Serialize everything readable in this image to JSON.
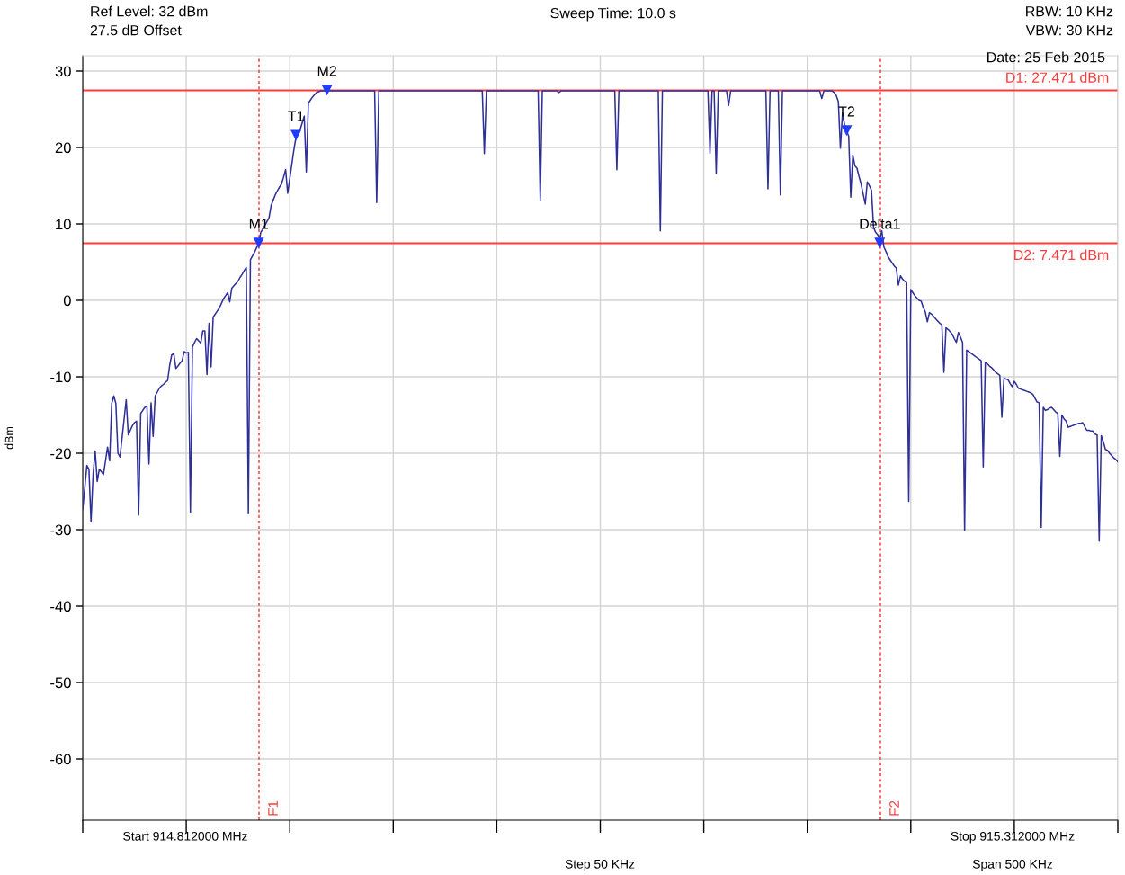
{
  "chart_data": {
    "type": "line",
    "title": "Sweep Time: 10.0 s",
    "ylabel": "dBm",
    "categories": [
      null,
      null,
      null,
      null,
      null,
      null,
      null,
      null,
      null,
      null,
      null,
      null,
      null,
      null,
      null,
      null,
      null,
      null,
      null,
      null,
      null,
      null,
      null,
      null,
      null,
      null,
      null,
      null,
      null,
      null,
      null,
      null,
      null,
      null,
      null,
      null,
      null,
      null,
      null,
      null,
      null,
      null,
      null,
      null,
      null,
      null,
      null,
      null,
      null,
      null,
      null,
      null,
      null,
      null,
      null,
      null,
      null,
      null,
      null,
      null,
      null,
      null,
      null,
      null,
      null,
      null,
      null,
      null,
      null,
      null,
      null,
      null,
      null,
      null,
      null,
      null,
      null,
      null,
      null,
      null,
      null,
      null,
      null,
      null,
      null,
      null,
      null,
      null,
      null,
      null,
      null,
      null,
      null,
      null,
      null,
      null,
      null,
      null,
      null,
      null,
      null,
      null,
      null,
      null,
      null,
      null,
      null,
      null,
      null,
      null,
      null,
      null,
      null,
      null,
      null,
      null,
      null,
      null,
      null,
      null,
      null,
      null,
      null,
      null,
      null,
      null,
      null,
      null,
      null,
      null,
      null,
      null,
      null,
      null,
      null,
      null,
      null,
      null,
      null,
      null,
      null,
      null,
      null,
      null,
      null,
      null,
      null,
      null,
      null,
      null,
      null,
      null,
      null,
      null,
      null,
      null,
      null,
      null,
      null,
      null,
      null,
      null,
      null,
      null,
      null,
      null,
      null,
      null,
      null,
      null,
      null,
      null,
      null,
      null,
      null,
      null,
      null,
      null,
      null,
      null,
      null,
      null,
      null,
      null,
      null,
      null,
      null,
      null,
      null,
      null,
      null,
      null,
      null,
      null,
      null,
      null,
      null,
      null,
      null,
      null,
      null,
      null,
      null,
      null,
      null,
      null,
      null,
      null,
      null,
      null,
      null,
      null,
      null,
      null,
      null,
      null,
      null,
      null,
      null,
      null,
      null,
      null,
      null,
      null,
      null,
      null,
      null,
      null,
      null,
      null,
      null,
      null,
      null,
      null,
      null,
      null,
      null,
      null,
      null,
      null,
      null,
      null,
      null,
      null,
      null,
      null,
      null,
      null,
      null,
      null,
      null,
      null,
      null,
      null,
      null,
      null,
      null,
      null,
      null,
      null,
      null,
      null,
      null,
      null,
      null,
      null,
      null,
      null,
      null,
      null,
      null,
      null,
      null,
      null,
      null,
      null,
      null,
      null,
      null,
      null,
      null,
      null,
      null,
      null,
      null,
      null,
      null,
      null,
      null,
      null,
      null,
      null,
      null,
      null,
      null,
      null,
      null,
      null,
      null,
      null,
      null,
      null,
      null,
      null,
      null,
      null,
      null,
      null,
      null,
      null,
      null,
      null,
      null,
      null,
      null,
      null,
      null,
      null,
      null,
      null,
      null,
      null,
      null,
      null,
      null,
      null,
      null,
      null,
      null,
      null,
      null,
      null,
      null,
      null,
      null,
      null,
      null,
      null,
      null,
      null,
      null,
      null,
      null,
      null,
      null,
      null,
      null,
      null,
      null,
      null,
      null,
      null,
      null,
      null,
      null,
      null,
      null,
      null,
      null,
      null,
      null,
      null,
      null,
      null,
      null,
      null,
      null,
      null,
      null,
      null,
      null,
      null,
      null,
      null,
      null,
      null,
      null,
      null,
      null,
      null,
      null,
      null,
      null,
      null,
      null,
      null,
      null,
      null,
      null,
      null,
      null,
      null,
      null,
      null,
      null,
      null,
      null,
      null,
      null,
      null,
      null,
      null,
      null,
      null,
      null,
      null,
      null,
      null,
      null,
      null,
      null,
      null,
      null,
      null,
      null,
      null,
      null,
      null,
      null,
      null,
      null,
      null,
      null,
      null,
      null,
      null,
      null,
      null,
      null,
      null,
      null,
      null,
      null,
      null,
      null,
      null,
      null,
      null,
      null,
      null,
      null,
      null,
      null,
      null,
      null,
      null,
      null,
      null,
      null,
      null,
      null,
      null,
      null,
      null,
      null,
      null,
      null,
      null,
      null,
      null,
      null,
      null,
      null,
      null,
      null,
      null,
      null,
      null,
      null,
      null,
      null,
      null,
      null,
      null,
      null,
      null,
      null,
      null,
      null,
      null,
      null,
      null,
      null,
      null,
      null,
      null,
      null,
      null,
      null,
      null,
      null,
      null,
      null,
      null,
      null,
      null,
      null,
      null,
      null,
      null,
      null
    ],
    "ylim": [
      -68,
      32
    ],
    "yticks": [
      -60,
      -50,
      -40,
      -30,
      -20,
      -10,
      0,
      10,
      20,
      30
    ],
    "tick_labels": "y",
    "grid": true,
    "series": [
      {
        "color": "#2f2f98",
        "values": [
          -27.3,
          -24.5,
          -21.6,
          -22.1,
          -29.0,
          -22.8,
          -19.7,
          -23.7,
          -22.1,
          -22.4,
          -22.8,
          -21.0,
          -19.2,
          -21.0,
          -13.5,
          -12.5,
          -13.5,
          -20.0,
          -20.5,
          -18.0,
          -15.5,
          -13.0,
          -17.6,
          -17.0,
          -16.4,
          -16.0,
          -15.8,
          -28.1,
          -14.8,
          -14.4,
          -14.0,
          -13.8,
          -21.4,
          -13.4,
          -17.8,
          -12.5,
          -12.0,
          -11.5,
          -11.2,
          -11.0,
          -10.7,
          -10.5,
          -8.5,
          -7.1,
          -7.0,
          -8.9,
          -8.6,
          -8.2,
          -7.9,
          -6.7,
          -6.9,
          -6.8,
          -27.7,
          -6.1,
          -5.5,
          -5.0,
          -5.3,
          -5.6,
          -4.0,
          -4.0,
          -9.7,
          -3.0,
          -8.7,
          -2.2,
          -1.8,
          -1.4,
          -1.0,
          -0.4,
          0.2,
          0.6,
          1.0,
          -0.2,
          1.6,
          1.9,
          2.2,
          2.5,
          3.0,
          3.4,
          3.9,
          4.3,
          -27.9,
          5.3,
          5.8,
          6.3,
          6.9,
          7.5,
          8.9,
          9.3,
          9.8,
          10.3,
          10.8,
          12.4,
          13.1,
          13.8,
          14.3,
          14.8,
          15.2,
          16.1,
          17.1,
          14.0,
          15.9,
          17.8,
          19.7,
          21.3,
          21.8,
          22.3,
          23.2,
          24.1,
          16.8,
          25.8,
          26.2,
          26.6,
          26.9,
          27.2,
          27.3,
          27.4,
          27.4,
          27.4,
          27.4,
          27.4,
          27.4,
          27.4,
          27.4,
          27.4,
          27.4,
          27.4,
          27.4,
          27.4,
          27.4,
          27.4,
          27.4,
          27.4,
          27.4,
          27.4,
          27.4,
          27.4,
          27.4,
          27.4,
          27.4,
          27.4,
          27.4,
          27.4,
          12.8,
          27.4,
          27.4,
          27.4,
          27.4,
          27.4,
          27.4,
          27.4,
          27.4,
          27.4,
          27.4,
          27.4,
          27.4,
          27.4,
          27.4,
          27.4,
          27.4,
          27.4,
          27.4,
          27.4,
          27.4,
          27.4,
          27.4,
          27.4,
          27.4,
          27.4,
          27.4,
          27.4,
          27.4,
          27.4,
          27.4,
          27.4,
          27.4,
          27.4,
          27.4,
          27.4,
          27.4,
          27.4,
          27.4,
          27.4,
          27.4,
          27.4,
          27.4,
          27.4,
          27.4,
          27.4,
          27.4,
          27.4,
          27.4,
          27.4,
          27.4,
          27.4,
          19.2,
          27.4,
          27.4,
          27.4,
          27.4,
          27.4,
          27.4,
          27.4,
          27.4,
          27.4,
          27.4,
          27.4,
          27.4,
          27.4,
          27.4,
          27.4,
          27.4,
          27.4,
          27.4,
          27.4,
          27.4,
          27.4,
          27.4,
          27.4,
          27.4,
          27.4,
          27.4,
          13.1,
          27.4,
          27.4,
          27.4,
          27.4,
          27.4,
          27.4,
          27.4,
          27.4,
          27.2,
          27.4,
          27.4,
          27.4,
          27.4,
          27.4,
          27.4,
          27.4,
          27.4,
          27.4,
          27.4,
          27.4,
          27.4,
          27.4,
          27.4,
          27.4,
          27.4,
          27.4,
          27.4,
          27.4,
          27.4,
          27.4,
          27.4,
          27.4,
          27.4,
          27.4,
          27.4,
          27.4,
          17.1,
          27.4,
          27.4,
          27.4,
          27.4,
          27.4,
          27.4,
          27.4,
          27.4,
          27.4,
          27.4,
          27.4,
          27.4,
          27.4,
          27.4,
          27.4,
          27.4,
          27.4,
          27.4,
          27.4,
          27.4,
          9.1,
          27.4,
          27.4,
          27.4,
          27.4,
          27.4,
          27.4,
          27.4,
          27.4,
          27.4,
          27.4,
          27.4,
          27.4,
          27.4,
          27.4,
          27.4,
          27.4,
          27.4,
          27.4,
          27.4,
          27.4,
          27.4,
          27.4,
          27.4,
          19.2,
          27.4,
          27.4,
          16.6,
          27.4,
          27.4,
          27.4,
          27.4,
          27.4,
          25.5,
          27.4,
          27.4,
          27.4,
          27.4,
          27.4,
          27.4,
          27.4,
          27.4,
          27.4,
          27.4,
          27.4,
          27.4,
          27.4,
          27.4,
          27.4,
          27.4,
          27.4,
          27.4,
          14.6,
          27.4,
          27.4,
          27.4,
          27.4,
          27.4,
          13.8,
          27.4,
          27.4,
          27.4,
          27.4,
          27.4,
          27.4,
          27.4,
          27.4,
          27.4,
          27.4,
          27.4,
          27.4,
          27.4,
          27.4,
          27.4,
          27.4,
          27.4,
          27.4,
          27.4,
          26.4,
          27.4,
          27.4,
          27.4,
          27.4,
          27.4,
          27.2,
          26.8,
          26.0,
          19.9,
          24.5,
          23.0,
          22.1,
          21.5,
          13.5,
          19.0,
          17.6,
          17.3,
          16.2,
          15.2,
          13.9,
          12.6,
          15.5,
          15.0,
          14.4,
          9.6,
          8.9,
          8.6,
          8.0,
          9.1,
          7.0,
          6.4,
          5.7,
          5.3,
          4.9,
          4.5,
          4.2,
          2.0,
          3.2,
          2.8,
          2.5,
          2.3,
          -26.3,
          1.4,
          1.0,
          0.6,
          0.3,
          0.0,
          -0.1,
          -0.9,
          -1.5,
          -2.8,
          -1.6,
          -1.8,
          -2.1,
          -2.4,
          -2.7,
          -3.0,
          -3.2,
          -9.4,
          -3.6,
          -3.8,
          -4.1,
          -4.4,
          -5.0,
          -5.5,
          -4.2,
          -4.8,
          -5.5,
          -30.1,
          -6.5,
          -6.7,
          -6.9,
          -7.1,
          -7.3,
          -7.5,
          -7.7,
          -7.9,
          -21.8,
          -8.1,
          -8.3,
          -8.6,
          -8.8,
          -9.1,
          -9.4,
          -9.6,
          -9.8,
          -15.3,
          -10.2,
          -10.3,
          -10.4,
          -10.9,
          -11.3,
          -10.6,
          -11.0,
          -11.5,
          -11.6,
          -11.7,
          -11.8,
          -11.9,
          -12.0,
          -12.1,
          -12.3,
          -12.8,
          -13.3,
          -13.4,
          -29.7,
          -14.0,
          -14.4,
          -14.3,
          -14.1,
          -14.0,
          -14.3,
          -14.6,
          -14.8,
          -20.4,
          -15.0,
          -15.5,
          -15.8,
          -16.6,
          -16.5,
          -16.4,
          -16.3,
          -16.2,
          -16.1,
          -16.1,
          -16.0,
          -16.5,
          -17.0,
          -17.0,
          -17.1,
          -17.1,
          -17.5,
          -17.6,
          -31.5,
          -17.7,
          -18.5,
          -19.5,
          -19.6,
          -20.0,
          -20.3,
          -20.6,
          -20.8,
          -21.1
        ]
      },
      {
        "type": "scatter",
        "color": "#1f3dff",
        "marker": "triangle",
        "values": [
          null,
          null,
          null,
          null,
          null,
          null,
          null,
          null,
          null,
          null,
          null,
          null,
          null,
          null,
          null,
          null,
          null,
          null,
          null,
          null,
          null,
          null,
          null,
          null,
          null,
          null,
          null,
          null,
          null,
          null,
          null,
          null,
          null,
          null,
          null,
          null,
          null,
          null,
          null,
          null,
          null,
          null,
          null,
          null,
          null,
          null,
          null,
          null,
          null,
          null,
          null,
          null,
          null,
          null,
          null,
          null,
          null,
          null,
          null,
          null,
          null,
          null,
          null,
          null,
          null,
          null,
          null,
          null,
          null,
          null,
          null,
          null,
          null,
          null,
          null,
          null,
          null,
          null,
          null,
          null,
          null,
          null,
          null,
          null,
          null,
          7.5,
          null,
          null,
          null,
          null,
          null,
          null,
          null,
          null,
          null,
          null,
          null,
          null,
          null,
          null,
          null,
          null,
          null,
          21.6,
          null,
          null,
          null,
          null,
          null,
          null,
          null,
          null,
          null,
          null,
          null,
          null,
          null,
          null,
          27.5,
          null,
          null,
          null,
          null,
          null,
          null,
          null,
          null,
          null,
          null,
          null,
          null,
          null,
          null,
          null,
          null,
          null,
          null,
          null,
          null,
          null,
          null,
          null,
          null,
          null,
          null,
          null,
          null,
          null,
          null,
          null,
          null,
          null,
          null,
          null,
          null,
          null,
          null,
          null,
          null,
          null,
          null,
          null,
          null,
          null,
          null,
          null,
          null,
          null,
          null,
          null,
          null,
          null,
          null,
          null,
          null,
          null,
          null,
          null,
          null,
          null,
          null,
          null,
          null,
          null,
          null,
          null,
          null,
          null,
          null,
          null,
          null,
          null,
          null,
          null,
          null,
          null,
          null,
          null,
          null,
          null,
          null,
          null,
          null,
          null,
          null,
          null,
          null,
          null,
          null,
          null,
          null,
          null,
          null,
          null,
          null,
          null,
          null,
          null,
          null,
          null,
          null,
          null,
          null,
          null,
          null,
          null,
          null,
          null,
          null,
          null,
          null,
          null,
          null,
          null,
          null,
          null,
          null,
          null,
          null,
          null,
          null,
          null,
          null,
          null,
          null,
          null,
          null,
          null,
          null,
          null,
          null,
          null,
          null,
          null,
          null,
          null,
          null,
          null,
          null,
          null,
          null,
          null,
          null,
          null,
          null,
          null,
          null,
          null,
          null,
          null,
          null,
          null,
          null,
          null,
          null,
          null,
          null,
          null,
          null,
          null,
          null,
          null,
          null,
          null,
          null,
          null,
          null,
          null,
          null,
          null,
          null,
          null,
          null,
          null,
          null,
          null,
          null,
          null,
          null,
          null,
          null,
          null,
          null,
          null,
          null,
          null,
          null,
          null,
          null,
          null,
          null,
          null,
          null,
          null,
          null,
          null,
          null,
          null,
          null,
          null,
          null,
          null,
          null,
          null,
          null,
          null,
          null,
          null,
          null,
          null,
          null,
          null,
          null,
          null,
          null,
          null,
          null,
          null,
          null,
          null,
          null,
          null,
          null,
          null,
          null,
          null,
          null,
          null,
          null,
          null,
          null,
          null,
          null,
          null,
          null,
          null,
          null,
          null,
          null,
          null,
          null,
          null,
          null,
          null,
          null,
          null,
          null,
          null,
          null,
          22.2,
          null,
          null,
          null,
          null,
          null,
          null,
          null,
          null,
          null,
          null,
          null,
          null,
          null,
          null,
          null,
          7.5,
          null,
          null,
          null,
          null,
          null,
          null,
          null,
          null,
          null,
          null,
          null,
          null,
          null,
          null,
          null,
          null,
          null,
          null,
          null,
          null,
          null,
          null,
          null,
          null,
          null,
          null,
          null,
          null,
          null,
          null,
          null,
          null,
          null,
          null,
          null,
          null,
          null,
          null,
          null,
          null,
          null,
          null,
          null,
          null,
          null,
          null,
          null,
          null,
          null,
          null,
          null,
          null,
          null,
          null,
          null,
          null,
          null,
          null,
          null,
          null,
          null,
          null,
          null,
          null,
          null,
          null,
          null,
          null,
          null,
          null,
          null,
          null,
          null,
          null,
          null,
          null,
          null,
          null,
          null,
          null,
          null,
          null,
          null,
          null,
          null,
          null,
          null,
          null,
          null,
          null,
          null,
          null,
          null,
          null,
          null,
          null,
          null,
          null,
          null,
          null,
          null,
          null,
          null,
          null,
          null,
          null,
          null,
          null,
          null,
          null,
          null,
          null,
          null,
          null,
          null
        ],
        "value_labels": [
          null,
          null,
          null,
          null,
          null,
          null,
          null,
          null,
          null,
          null,
          null,
          null,
          null,
          null,
          null,
          null,
          null,
          null,
          null,
          null,
          null,
          null,
          null,
          null,
          null,
          null,
          null,
          null,
          null,
          null,
          null,
          null,
          null,
          null,
          null,
          null,
          null,
          null,
          null,
          null,
          null,
          null,
          null,
          null,
          null,
          null,
          null,
          null,
          null,
          null,
          null,
          null,
          null,
          null,
          null,
          null,
          null,
          null,
          null,
          null,
          null,
          null,
          null,
          null,
          null,
          null,
          null,
          null,
          null,
          null,
          null,
          null,
          null,
          null,
          null,
          null,
          null,
          null,
          null,
          null,
          null,
          null,
          null,
          null,
          null,
          "M1",
          null,
          null,
          null,
          null,
          null,
          null,
          null,
          null,
          null,
          null,
          null,
          null,
          null,
          null,
          null,
          null,
          null,
          "T1",
          null,
          null,
          null,
          null,
          null,
          null,
          null,
          null,
          null,
          null,
          null,
          null,
          null,
          null,
          "M2",
          null,
          null,
          null,
          null,
          null,
          null,
          null,
          null,
          null,
          null,
          null,
          null,
          null,
          null,
          null,
          null,
          null,
          null,
          null,
          null,
          null,
          null,
          null,
          null,
          null,
          null,
          null,
          null,
          null,
          null,
          null,
          null,
          null,
          null,
          null,
          null,
          null,
          null,
          null,
          null,
          null,
          null,
          null,
          null,
          null,
          null,
          null,
          null,
          null,
          null,
          null,
          null,
          null,
          null,
          null,
          null,
          null,
          null,
          null,
          null,
          null,
          null,
          null,
          null,
          null,
          null,
          null,
          null,
          null,
          null,
          null,
          null,
          null,
          null,
          null,
          null,
          null,
          null,
          null,
          null,
          null,
          null,
          null,
          null,
          null,
          null,
          null,
          null,
          null,
          null,
          null,
          null,
          null,
          null,
          null,
          null,
          null,
          null,
          null,
          null,
          null,
          null,
          null,
          null,
          null,
          null,
          null,
          null,
          null,
          null,
          null,
          null,
          null,
          null,
          null,
          null,
          null,
          null,
          null,
          null,
          null,
          null,
          null,
          null,
          null,
          null,
          null,
          null,
          null,
          null,
          null,
          null,
          null,
          null,
          null,
          null,
          null,
          null,
          null,
          null,
          null,
          null,
          null,
          null,
          null,
          null,
          null,
          null,
          null,
          null,
          null,
          null,
          null,
          null,
          null,
          null,
          null,
          null,
          null,
          null,
          null,
          null,
          null,
          null,
          null,
          null,
          null,
          null,
          null,
          null,
          null,
          null,
          null,
          null,
          null,
          null,
          null,
          null,
          null,
          null,
          null,
          null,
          null,
          null,
          null,
          null,
          null,
          null,
          null,
          null,
          null,
          null,
          null,
          null,
          null,
          null,
          null,
          null,
          null,
          null,
          null,
          null,
          null,
          null,
          null,
          null,
          null,
          null,
          null,
          null,
          null,
          null,
          null,
          null,
          null,
          null,
          null,
          null,
          null,
          null,
          null,
          null,
          null,
          null,
          null,
          null,
          null,
          null,
          null,
          null,
          null,
          null,
          null,
          null,
          null,
          null,
          null,
          null,
          null,
          null,
          null,
          null,
          null,
          null,
          null,
          null,
          null,
          null,
          null,
          null,
          "T2",
          null,
          null,
          null,
          null,
          null,
          null,
          null,
          null,
          null,
          null,
          null,
          null,
          null,
          null,
          null,
          "Delta1",
          null,
          null,
          null,
          null,
          null,
          null,
          null,
          null,
          null,
          null,
          null,
          null,
          null,
          null,
          null,
          null,
          null,
          null,
          null,
          null,
          null,
          null,
          null,
          null,
          null,
          null,
          null,
          null,
          null,
          null,
          null,
          null,
          null,
          null,
          null,
          null,
          null,
          null,
          null,
          null,
          null,
          null,
          null,
          null,
          null,
          null,
          null,
          null,
          null,
          null,
          null,
          null,
          null,
          null,
          null,
          null,
          null,
          null,
          null,
          null,
          null,
          null,
          null,
          null,
          null,
          null,
          null,
          null,
          null,
          null,
          null,
          null,
          null,
          null,
          null,
          null,
          null,
          null,
          null,
          null,
          null,
          null,
          null,
          null,
          null,
          null,
          null,
          null,
          null,
          null,
          null,
          null,
          null,
          null,
          null,
          null,
          null,
          null,
          null,
          null,
          null,
          null,
          null,
          null,
          null,
          null,
          null,
          null,
          null,
          null,
          null,
          null,
          null,
          null,
          null
        ]
      }
    ],
    "ref_lines": [
      {
        "axis": "y",
        "value": 27.471,
        "label": "D1: 27.471 dBm",
        "color": "#ff3b3b",
        "line_style": "solid"
      },
      {
        "axis": "y",
        "value": 7.471,
        "label": "D2: 7.471 dBm",
        "color": "#ff3b3b",
        "line_style": "solid"
      },
      {
        "axis": "x",
        "label": "F1",
        "color": "#ff3b3b",
        "line_style": "dotted"
      },
      {
        "axis": "x",
        "label": "F2",
        "color": "#ff3b3b",
        "line_style": "dotted"
      }
    ],
    "annotations": [
      "Ref Level: 32 dBm",
      "27.5 dB Offset",
      "RBW: 10 KHz",
      "VBW: 30 KHz",
      "Date: 25 Feb 2015",
      "Start 914.812000 MHz",
      "Stop 915.312000 MHz",
      "Step 50 KHz",
      "Span 500 KHz"
    ]
  }
}
